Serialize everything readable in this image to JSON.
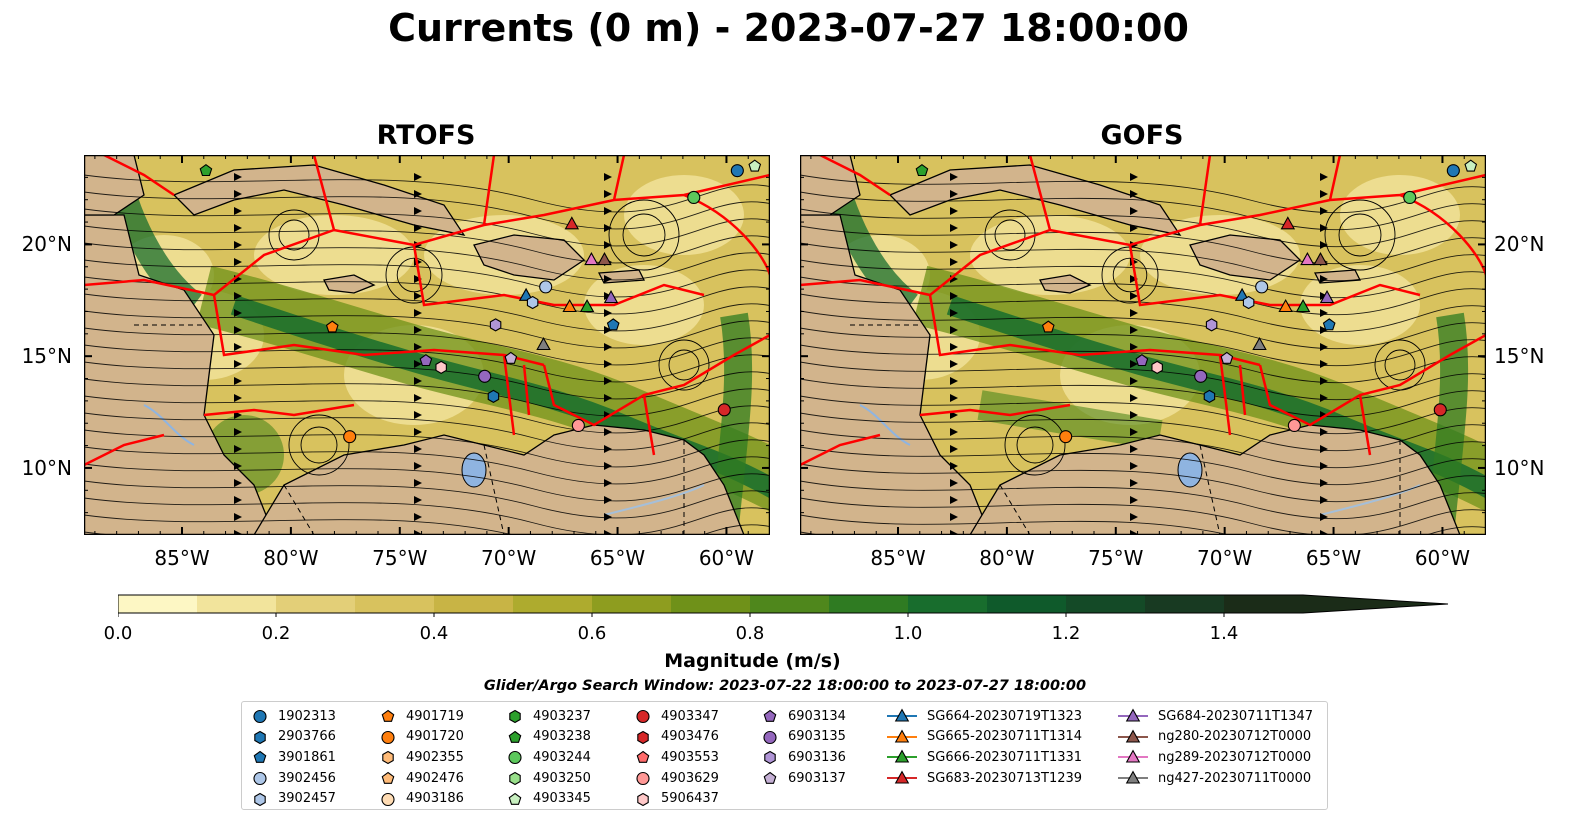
{
  "title": "Currents (0 m) - 2023-07-27 18:00:00",
  "panels": [
    {
      "title": "RTOFS"
    },
    {
      "title": "GOFS"
    }
  ],
  "axes": {
    "lat_labels": [
      "20°N",
      "15°N",
      "10°N"
    ],
    "lon_labels": [
      "85°W",
      "80°W",
      "75°W",
      "70°W",
      "65°W",
      "60°W"
    ],
    "extent": {
      "lon_min": -89.5,
      "lon_max": -58.0,
      "lat_min": 7.0,
      "lat_max": 24.0
    }
  },
  "colorbar": {
    "label": "Magnitude (m/s)",
    "ticks": [
      "0.0",
      "0.2",
      "0.4",
      "0.6",
      "0.8",
      "1.0",
      "1.2",
      "1.4"
    ],
    "range": [
      0.0,
      1.5
    ],
    "extend": "max",
    "colors": [
      "#fdf7c4",
      "#f2e49c",
      "#e3cf78",
      "#d8c25e",
      "#c8b445",
      "#aeab2e",
      "#8e9d1f",
      "#6f9119",
      "#4f871c",
      "#2f7b22",
      "#186d2d",
      "#0f5a2b",
      "#144a27",
      "#183a22",
      "#1b2c18"
    ]
  },
  "search_window": "Glider/Argo Search Window: 2023-07-22 18:00:00 to 2023-07-27 18:00:00",
  "legend": {
    "columns": [
      [
        {
          "label": "1902313",
          "marker": "circle",
          "color": "#1f77b4"
        },
        {
          "label": "2903766",
          "marker": "hexagon",
          "color": "#1f77b4"
        },
        {
          "label": "3901861",
          "marker": "pentagon",
          "color": "#1f77b4"
        },
        {
          "label": "3902456",
          "marker": "circle",
          "color": "#aec7e8"
        },
        {
          "label": "3902457",
          "marker": "hexagon",
          "color": "#aec7e8"
        }
      ],
      [
        {
          "label": "4901719",
          "marker": "pentagon",
          "color": "#ff7f0e"
        },
        {
          "label": "4901720",
          "marker": "circle",
          "color": "#ff7f0e"
        },
        {
          "label": "4902355",
          "marker": "hexagon",
          "color": "#ffbb78"
        },
        {
          "label": "4902476",
          "marker": "pentagon",
          "color": "#ffbb78"
        },
        {
          "label": "4903186",
          "marker": "circle",
          "color": "#ffdcb4"
        }
      ],
      [
        {
          "label": "4903237",
          "marker": "hexagon",
          "color": "#2ca02c"
        },
        {
          "label": "4903238",
          "marker": "pentagon",
          "color": "#2ca02c"
        },
        {
          "label": "4903244",
          "marker": "circle",
          "color": "#5cc85c"
        },
        {
          "label": "4903250",
          "marker": "hexagon",
          "color": "#98df8a"
        },
        {
          "label": "4903345",
          "marker": "pentagon",
          "color": "#c8f0c0"
        }
      ],
      [
        {
          "label": "4903347",
          "marker": "circle",
          "color": "#d62728"
        },
        {
          "label": "4903476",
          "marker": "hexagon",
          "color": "#d62728"
        },
        {
          "label": "4903553",
          "marker": "pentagon",
          "color": "#ff6b6b"
        },
        {
          "label": "4903629",
          "marker": "circle",
          "color": "#ff9896"
        },
        {
          "label": "5906437",
          "marker": "hexagon",
          "color": "#ffc8c8"
        }
      ],
      [
        {
          "label": "6903134",
          "marker": "pentagon",
          "color": "#9467bd"
        },
        {
          "label": "6903135",
          "marker": "circle",
          "color": "#9467bd"
        },
        {
          "label": "6903136",
          "marker": "hexagon",
          "color": "#b095d6"
        },
        {
          "label": "6903137",
          "marker": "pentagon",
          "color": "#c5b0d5"
        }
      ],
      [
        {
          "label": "SG664-20230719T1323",
          "marker": "triangle",
          "color": "#1f77b4"
        },
        {
          "label": "SG665-20230711T1314",
          "marker": "triangle",
          "color": "#ff7f0e"
        },
        {
          "label": "SG666-20230711T1331",
          "marker": "triangle",
          "color": "#2ca02c"
        },
        {
          "label": "SG683-20230713T1239",
          "marker": "triangle",
          "color": "#d62728"
        }
      ],
      [
        {
          "label": "SG684-20230711T1347",
          "marker": "triangle",
          "color": "#9467bd"
        },
        {
          "label": "ng280-20230712T0000",
          "marker": "triangle",
          "color": "#8c564b"
        },
        {
          "label": "ng289-20230712T0000",
          "marker": "triangle",
          "color": "#e377c2"
        },
        {
          "label": "ng427-20230711T0000",
          "marker": "triangle",
          "color": "#7f7f7f"
        }
      ]
    ]
  },
  "observations": [
    {
      "id": "1902313",
      "lon": -59.5,
      "lat": 23.3
    },
    {
      "id": "4903345",
      "lon": -58.7,
      "lat": 23.5
    },
    {
      "id": "4903238",
      "lon": -83.9,
      "lat": 23.3
    },
    {
      "id": "4903244",
      "lon": -61.5,
      "lat": 22.1
    },
    {
      "id": "SG683-20230713T1239",
      "lon": -67.1,
      "lat": 20.9
    },
    {
      "id": "ng289-20230712T0000",
      "lon": -66.2,
      "lat": 19.3
    },
    {
      "id": "ng280-20230712T0000",
      "lon": -65.6,
      "lat": 19.3
    },
    {
      "id": "SG664-20230719T1323",
      "lon": -69.2,
      "lat": 17.7
    },
    {
      "id": "3902456",
      "lon": -68.3,
      "lat": 18.1
    },
    {
      "id": "3902457",
      "lon": -68.9,
      "lat": 17.4
    },
    {
      "id": "SG665-20230711T1314",
      "lon": -67.2,
      "lat": 17.2
    },
    {
      "id": "SG666-20230711T1331",
      "lon": -66.4,
      "lat": 17.2
    },
    {
      "id": "SG684-20230711T1347",
      "lon": -65.3,
      "lat": 17.6
    },
    {
      "id": "3901861",
      "lon": -65.2,
      "lat": 16.4
    },
    {
      "id": "6903137",
      "lon": -69.9,
      "lat": 14.9
    },
    {
      "id": "6903136",
      "lon": -70.6,
      "lat": 16.4
    },
    {
      "id": "ng427-20230711T0000",
      "lon": -68.4,
      "lat": 15.5
    },
    {
      "id": "6903134",
      "lon": -73.8,
      "lat": 14.8
    },
    {
      "id": "5906437",
      "lon": -73.1,
      "lat": 14.5
    },
    {
      "id": "6903135",
      "lon": -71.1,
      "lat": 14.1
    },
    {
      "id": "2903766",
      "lon": -70.7,
      "lat": 13.2
    },
    {
      "id": "4901719",
      "lon": -78.1,
      "lat": 16.3
    },
    {
      "id": "4901720",
      "lon": -77.3,
      "lat": 11.4
    },
    {
      "id": "4903629",
      "lon": -66.8,
      "lat": 11.9
    },
    {
      "id": "4903347",
      "lon": -60.1,
      "lat": 12.6
    }
  ]
}
